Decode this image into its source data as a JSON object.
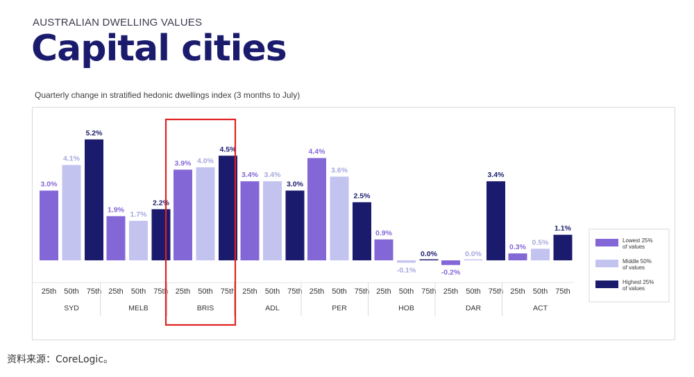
{
  "header": {
    "kicker": "AUSTRALIAN DWELLING VALUES",
    "title": "Capital cities"
  },
  "source": "资料来源：CoreLogic。",
  "chart_data": {
    "type": "bar",
    "subtitle": "Quarterly change in stratified hedonic dwellings index (3 months to July)",
    "groups": [
      "SYD",
      "MELB",
      "BRIS",
      "ADL",
      "PER",
      "HOB",
      "DAR",
      "ACT"
    ],
    "tiers": [
      "25th",
      "50th",
      "75th"
    ],
    "series": [
      {
        "name": "Lowest 25% of values",
        "legend_lines": [
          "Lowest 25%",
          "of values"
        ],
        "tier": "25th",
        "color": "#8467d7",
        "label_color": "#8467d7",
        "labels": [
          "3.0%",
          "1.9%",
          "3.9%",
          "3.4%",
          "4.4%",
          "0.9%",
          "-0.2%",
          "0.3%"
        ],
        "values": [
          3.0,
          1.9,
          3.9,
          3.4,
          4.4,
          0.9,
          -0.2,
          0.3
        ]
      },
      {
        "name": "Middle 50% of values",
        "legend_lines": [
          "Middle 50%",
          "of values"
        ],
        "tier": "50th",
        "color": "#c3c3f0",
        "label_color": "#a8a8e0",
        "labels": [
          "4.1%",
          "1.7%",
          "4.0%",
          "3.4%",
          "3.6%",
          "-0.1%",
          "0.0%",
          "0.5%"
        ],
        "values": [
          4.1,
          1.7,
          4.0,
          3.4,
          3.6,
          -0.1,
          0.0,
          0.5
        ]
      },
      {
        "name": "Highest 25% of values",
        "legend_lines": [
          "Highest 25%",
          "of values"
        ],
        "tier": "75th",
        "color": "#1b1b6e",
        "label_color": "#1b1b6e",
        "labels": [
          "5.2%",
          "2.2%",
          "4.5%",
          "3.0%",
          "2.5%",
          "0.0%",
          "3.4%",
          "1.1%"
        ],
        "values": [
          5.2,
          2.2,
          4.5,
          3.0,
          2.5,
          0.0,
          3.4,
          1.1
        ]
      }
    ],
    "highlight_group": "BRIS",
    "highlight_color": "#e02020",
    "legend_position": "right",
    "ylim": [
      -0.3,
      5.5
    ]
  }
}
